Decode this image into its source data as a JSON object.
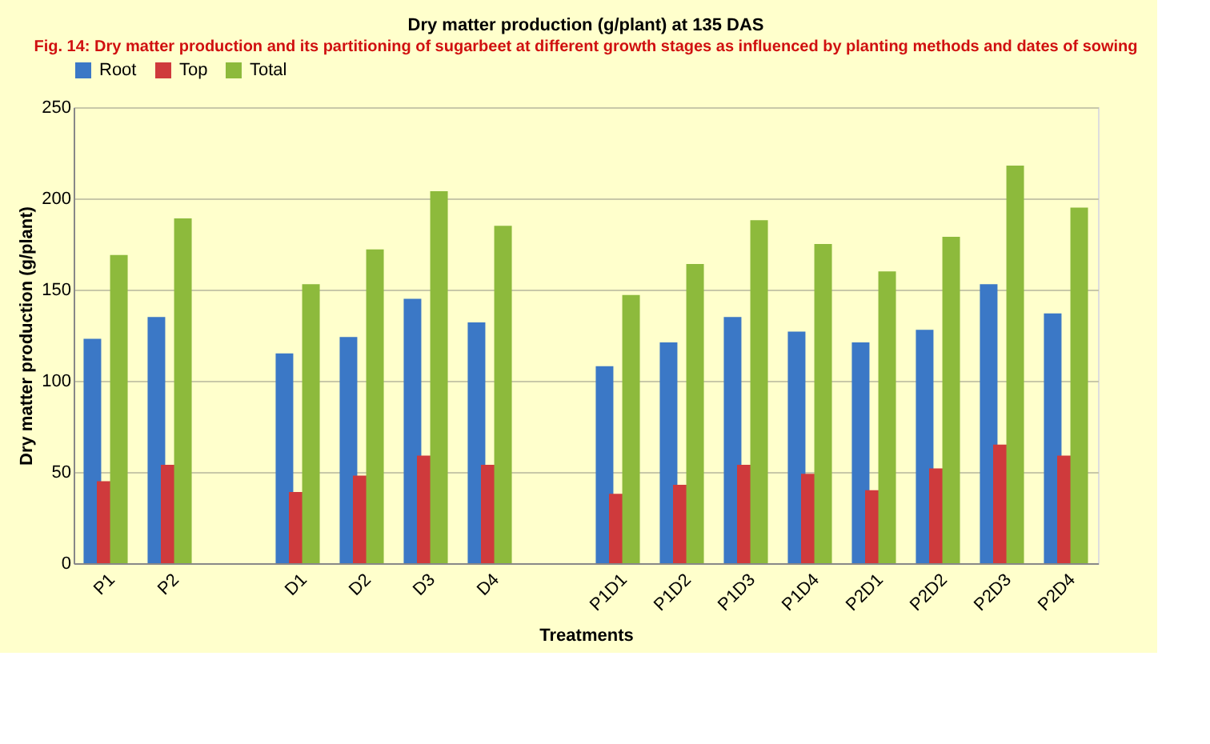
{
  "chart_data": {
    "type": "bar",
    "title": "Dry matter production (g/plant) at 135 DAS",
    "xlabel": "Treatments",
    "ylabel": "Dry matter production (g/plant)",
    "categories": [
      "P1",
      "P2",
      null,
      "D1",
      "D2",
      "D3",
      "D4",
      null,
      "P1D1",
      "P1D2",
      "P1D3",
      "P1D4",
      "P2D1",
      "P2D2",
      "P2D3",
      "P2D4"
    ],
    "series": [
      {
        "name": "Root",
        "color": "#3b78c6",
        "values": [
          123,
          135,
          null,
          115,
          124,
          145,
          132,
          null,
          108,
          121,
          135,
          127,
          121,
          128,
          153,
          137
        ]
      },
      {
        "name": "Top",
        "color": "#cf3a3c",
        "values": [
          45,
          54,
          null,
          39,
          48,
          59,
          54,
          null,
          38,
          43,
          54,
          49,
          40,
          52,
          65,
          59
        ]
      },
      {
        "name": "Total",
        "color": "#8dba3c",
        "values": [
          169,
          189,
          null,
          153,
          172,
          204,
          185,
          null,
          147,
          164,
          188,
          175,
          160,
          179,
          218,
          195
        ]
      }
    ],
    "ylim": [
      0,
      250
    ],
    "yticks": [
      0,
      50,
      100,
      150,
      200,
      250
    ],
    "grid": "y",
    "legend": "top",
    "annotations": [
      "Fig. 14: Dry matter production and its partitioning of sugarbeet  at different growth stages as influenced by planting methods and dates of sowing"
    ]
  }
}
